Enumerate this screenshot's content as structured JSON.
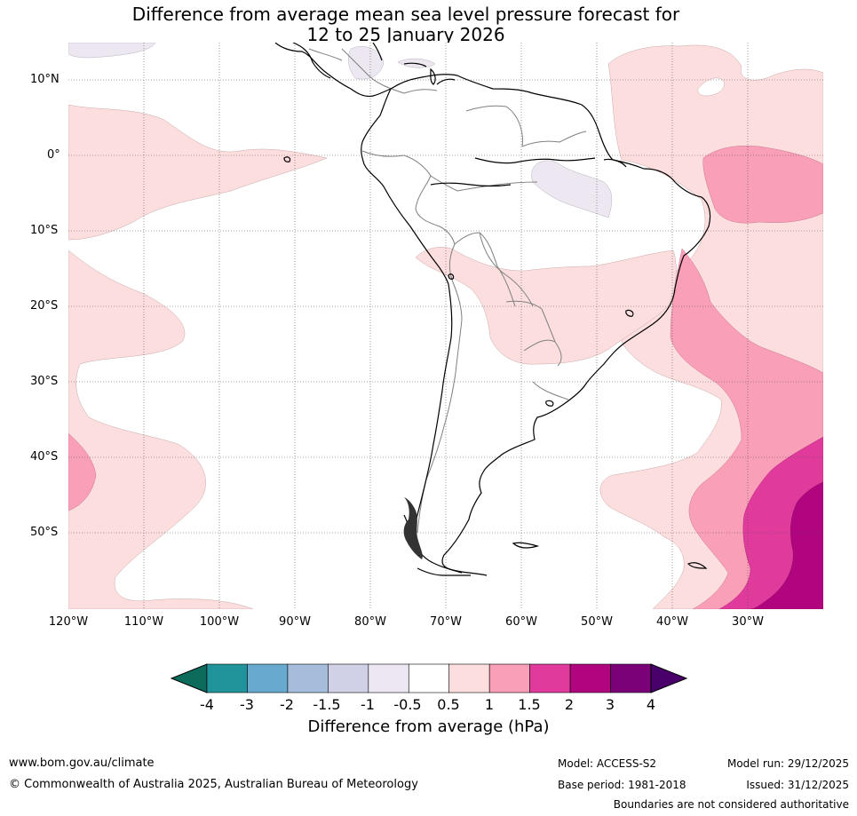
{
  "title": {
    "line1": "Difference from average mean sea level pressure forecast for",
    "line2": "12 to 25 January 2026"
  },
  "latitude_labels": [
    "10°N",
    "0°",
    "10°S",
    "20°S",
    "30°S",
    "40°S",
    "50°S"
  ],
  "longitude_labels": [
    "120°W",
    "110°W",
    "100°W",
    "90°W",
    "80°W",
    "70°W",
    "60°W",
    "50°W",
    "40°W",
    "30°W"
  ],
  "colorbar": {
    "ticks": [
      "-4",
      "-3",
      "-2",
      "-1.5",
      "-1",
      "-0.5",
      "0.5",
      "1",
      "1.5",
      "2",
      "3",
      "4"
    ],
    "colors": {
      "lt_-4": "#0d6b5c",
      "-4_-3": "#21949b",
      "-3_-2": "#68a9cf",
      "-2_-1.5": "#a6bcdb",
      "-1.5_-1": "#d0d1e6",
      "-1_-0.5": "#ece7f0",
      "-0.5_0.5": "#ffffff",
      "0.5_1": "#fddede",
      "1_1.5": "#f99fb7",
      "1.5_2": "#df3a9c",
      "2_3": "#b1047f",
      "3_4": "#7a0177",
      "gt_4": "#49006a"
    },
    "label": "Difference from average (hPa)"
  },
  "footer": {
    "website": "www.bom.gov.au/climate",
    "copyright": "© Commonwealth of Australia 2025, Australian Bureau of Meteorology",
    "model": "Model: ACCESS-S2",
    "base_period": "Base period: 1981-2018",
    "model_run": "Model run: 29/12/2025",
    "issued": "Issued: 31/12/2025",
    "disclaimer": "Boundaries are not considered authoritative"
  }
}
